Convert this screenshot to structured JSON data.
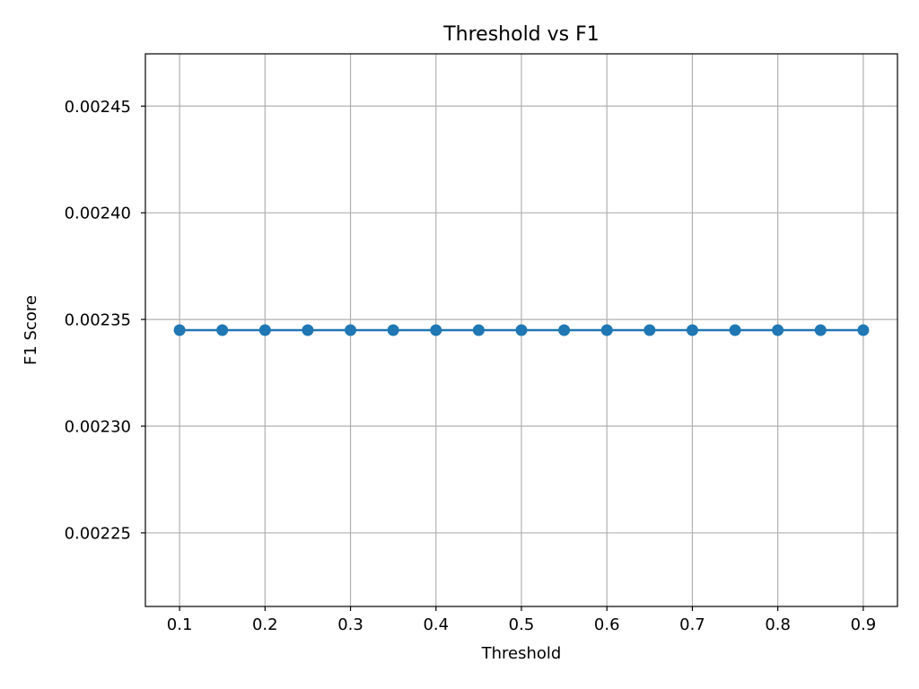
{
  "chart_data": {
    "type": "line",
    "title": "Threshold vs F1",
    "xlabel": "Threshold",
    "ylabel": "F1 Score",
    "x": [
      0.1,
      0.15,
      0.2,
      0.25,
      0.3,
      0.35,
      0.4,
      0.45,
      0.5,
      0.55,
      0.6,
      0.65,
      0.7,
      0.75,
      0.8,
      0.85,
      0.9
    ],
    "series": [
      {
        "values": [
          0.002345,
          0.002345,
          0.002345,
          0.002345,
          0.002345,
          0.002345,
          0.002345,
          0.002345,
          0.002345,
          0.002345,
          0.002345,
          0.002345,
          0.002345,
          0.002345,
          0.002345,
          0.002345,
          0.002345
        ],
        "color": "#1f77b4",
        "marker": "circle"
      }
    ],
    "xlim": [
      0.06,
      0.94
    ],
    "ylim": [
      0.0022155,
      0.0024745
    ],
    "xticks": [
      0.1,
      0.2,
      0.3,
      0.4,
      0.5,
      0.6,
      0.7,
      0.8,
      0.9
    ],
    "xtick_labels": [
      "0.1",
      "0.2",
      "0.3",
      "0.4",
      "0.5",
      "0.6",
      "0.7",
      "0.8",
      "0.9"
    ],
    "yticks": [
      0.00225,
      0.0023,
      0.00235,
      0.0024,
      0.00245
    ],
    "ytick_labels": [
      "0.00225",
      "0.00230",
      "0.00235",
      "0.00240",
      "0.00245"
    ],
    "grid": true,
    "grid_color": "#b0b0b0",
    "legend": "none"
  }
}
